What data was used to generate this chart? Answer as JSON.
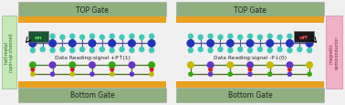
{
  "bg_color": "#f0f0f0",
  "gate_color": "#8faf7e",
  "gate_stripe_color": "#e8a020",
  "gate_text_color": "#222222",
  "center_bg": "#f0f0f0",
  "left_label_bg": "#c8e8b8",
  "right_label_bg": "#f0b0c8",
  "left_label_text": "half-metal\n(spin-up channel)",
  "right_label_text": "magnetic\nsemiconductor",
  "top_gate_label": "TOP Gate",
  "bottom_gate_label": "Bottom Gate",
  "left_signal_text": "Data Reading:signal +P↑(1)",
  "right_signal_text": "Data Reading:signal -P↓(0)",
  "on_text": "on",
  "off_text": "off",
  "on_bg": "#1a5535",
  "off_bg": "#1a1a1a",
  "on_text_color": "#55ee55",
  "off_text_color": "#ee4444",
  "figsize": [
    3.78,
    1.16
  ],
  "dpi": 100,
  "teal": "#40c8b8",
  "blue_atom": "#2233bb",
  "green_atom": "#33aa11",
  "purple_atom": "#6633cc",
  "yellow_atom": "#c8b800",
  "red_atom": "#cc2222"
}
